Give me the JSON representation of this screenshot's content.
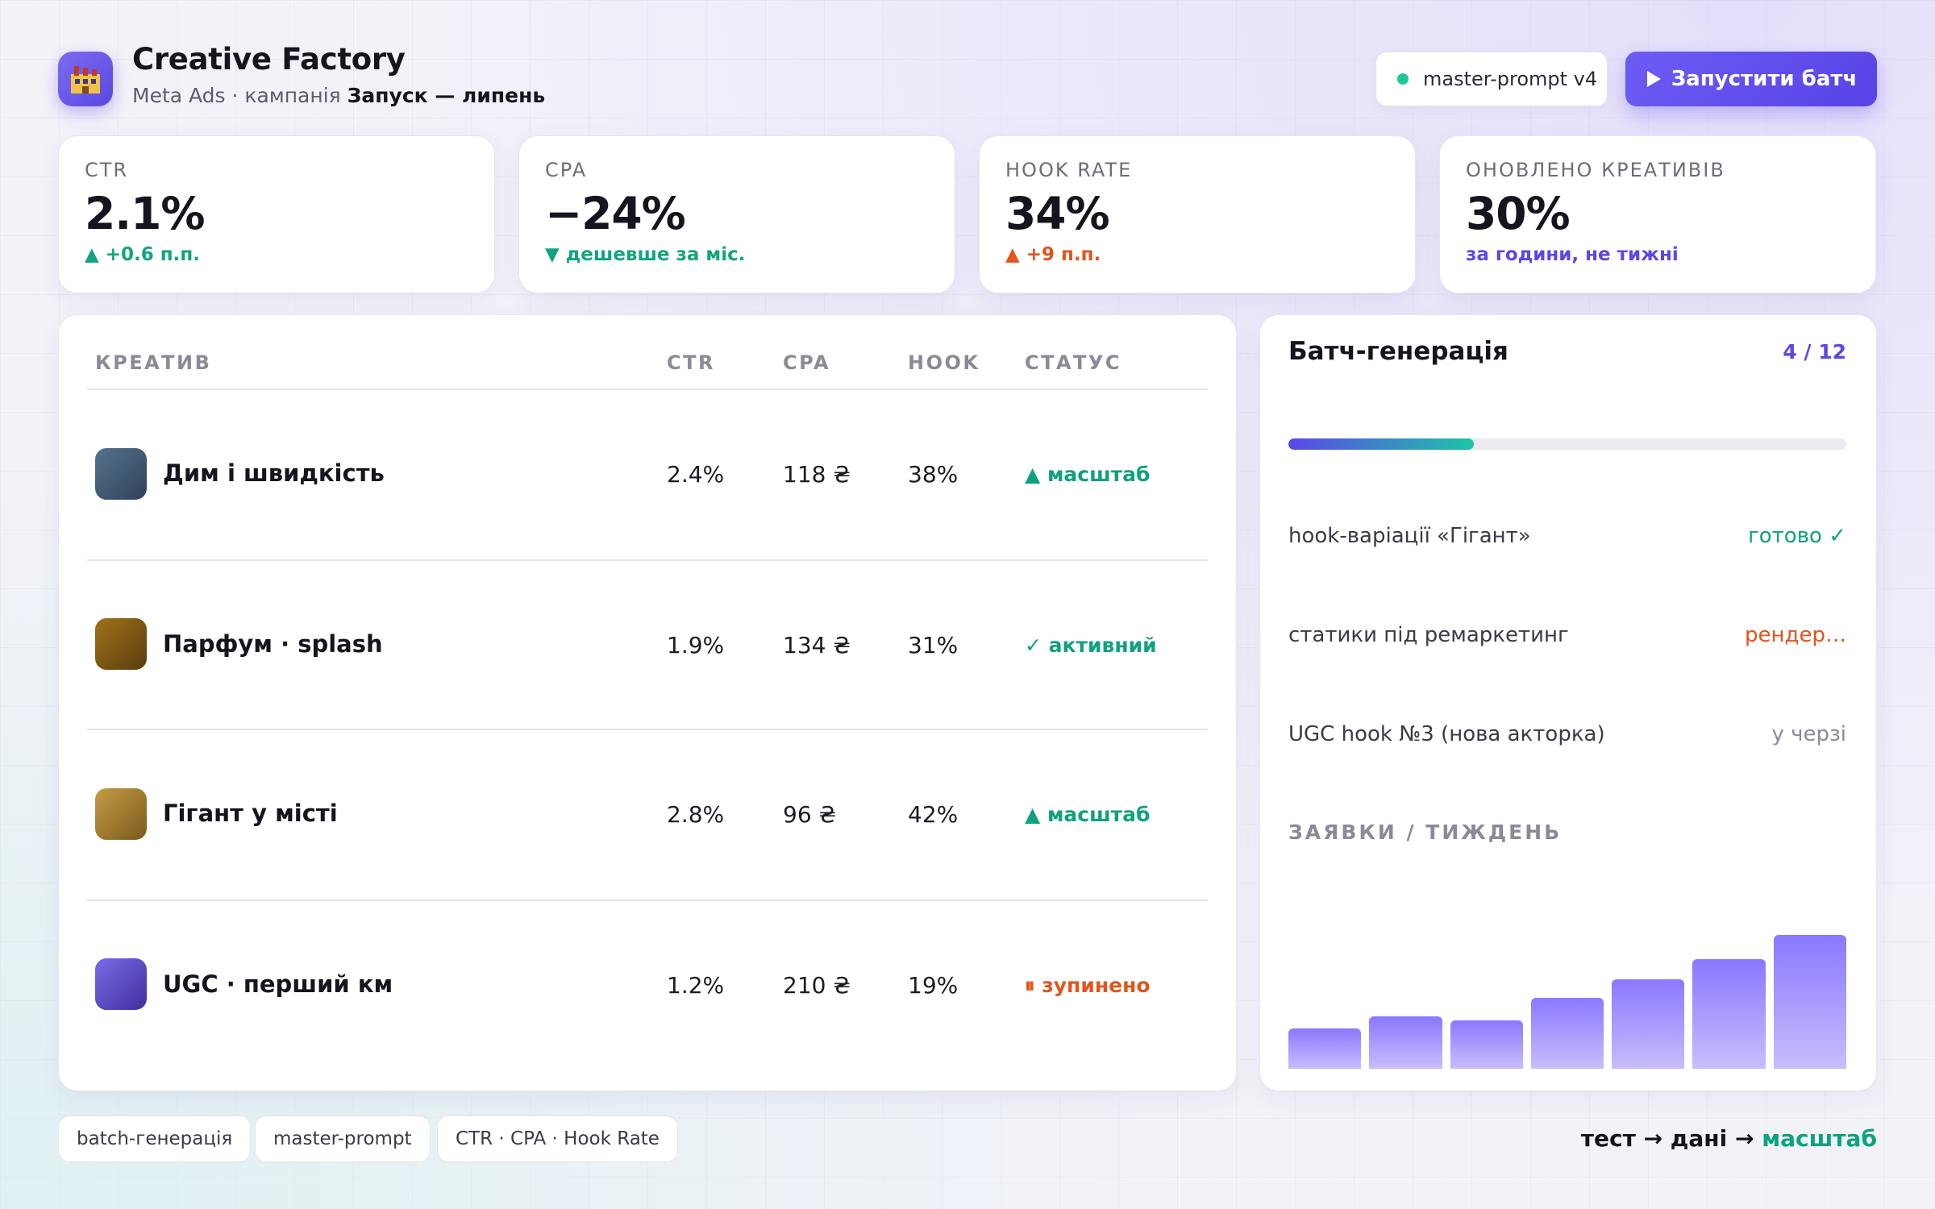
{
  "header": {
    "logo_icon": "factory-icon",
    "title": "Creative Factory",
    "subtitle_prefix": "Meta Ads · кампанія",
    "subtitle_campaign": "Запуск — липень",
    "prompt_badge": "master-prompt v4",
    "run_button": "Запустити батч"
  },
  "kpis": [
    {
      "label": "CTR",
      "value": "2.1%",
      "delta_icon": "triangle-up-icon",
      "delta": "+0.6 п.п.",
      "delta_color": "#10a57f"
    },
    {
      "label": "CPA",
      "value": "−24%",
      "delta_icon": "triangle-down-icon",
      "delta": "дешевше за міс.",
      "delta_color": "#10a57f"
    },
    {
      "label": "HOOK RATE",
      "value": "34%",
      "delta_icon": "triangle-up-icon",
      "delta": "+9 п.п.",
      "delta_color": "#e2541c"
    },
    {
      "label": "ОНОВЛЕНО КРЕАТИВІВ",
      "value": "30%",
      "delta_icon": "",
      "delta": "за години, не тижні",
      "delta_color": "#5b47e6"
    }
  ],
  "table": {
    "columns": [
      "КРЕАТИВ",
      "CTR",
      "CPA",
      "HOOK",
      "СТАТУС"
    ],
    "rows": [
      {
        "name": "Дим і швидкість",
        "ctr": "2.4%",
        "cpa": "118 ₴",
        "hook": "38%",
        "status_icon": "▲",
        "status": "масштаб",
        "status_color": "#0ea27d",
        "thumb": [
          "#56728f",
          "#2e4257"
        ]
      },
      {
        "name": "Парфум · splash",
        "ctr": "1.9%",
        "cpa": "134 ₴",
        "hook": "31%",
        "status_icon": "✓",
        "status": "активний",
        "status_color": "#0ea27d",
        "thumb": [
          "#a0721d",
          "#5a3c0c"
        ]
      },
      {
        "name": "Гігант у місті",
        "ctr": "2.8%",
        "cpa": "96 ₴",
        "hook": "42%",
        "status_icon": "▲",
        "status": "масштаб",
        "status_color": "#0ea27d",
        "thumb": [
          "#c49c47",
          "#7b5a1d"
        ]
      },
      {
        "name": "UGC · перший км",
        "ctr": "1.2%",
        "cpa": "210 ₴",
        "hook": "19%",
        "status_icon": "⏸",
        "status": "зупинено",
        "status_color": "#e2541c",
        "thumb": [
          "#7b6be8",
          "#3f2f9e"
        ]
      }
    ]
  },
  "batch": {
    "title": "Батч-генерація",
    "count": "4 / 12",
    "progress": 0.333,
    "tasks": [
      {
        "name": "hook-варіації «Гігант»",
        "state": "готово ✓",
        "state_kind": "done"
      },
      {
        "name": "статики під ремаркетинг",
        "state": "рендер…",
        "state_kind": "render"
      },
      {
        "name": "UGC hook №3 (нова акторка)",
        "state": "у черзі",
        "state_kind": "queue"
      }
    ],
    "leads_label": "ЗАЯВКИ / ТИЖДЕНЬ"
  },
  "chart_data": {
    "type": "bar",
    "title": "ЗАЯВКИ / ТИЖДЕНЬ",
    "categories": [
      "",
      "",
      "",
      "",
      "",
      "",
      ""
    ],
    "values": [
      30,
      39,
      36,
      53,
      67,
      82,
      100
    ],
    "ylim": [
      0,
      100
    ],
    "grid": false
  },
  "footer": {
    "tags": [
      "batch-генерація",
      "master-prompt",
      "CTR · CPA · Hook Rate"
    ],
    "flow_parts": [
      "тест",
      "→",
      "дані",
      "→",
      "масштаб"
    ]
  }
}
